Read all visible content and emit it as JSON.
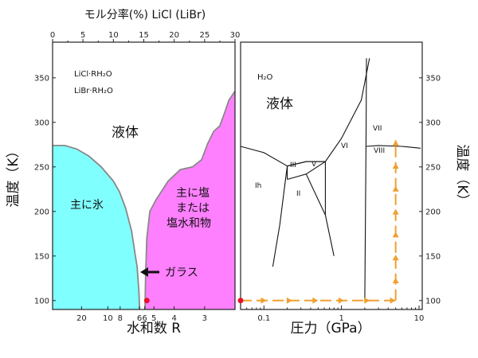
{
  "chart_data": [
    {
      "type": "area",
      "top_axis": {
        "label": "モル分率(%) LiCl (LiBr)",
        "range": [
          0,
          30
        ],
        "ticks": [
          "0",
          "5",
          "10",
          "15",
          "20",
          "25",
          "30"
        ]
      },
      "bottom_axis": {
        "label": "水和数 R",
        "ticks": [
          "20",
          "10",
          "8",
          "6",
          "6",
          "5",
          "4",
          "3"
        ]
      },
      "y_axis": {
        "label": "温度（K）",
        "range": [
          90,
          390
        ],
        "ticks": [
          "100",
          "150",
          "200",
          "250",
          "300",
          "350"
        ]
      },
      "regions": [
        {
          "name": "主に氷",
          "color": "#80ffff"
        },
        {
          "name_lines": [
            "主に塩",
            "または",
            "塩水和物"
          ],
          "color": "#ff80ff"
        },
        {
          "name": "液体"
        }
      ],
      "boundary_left": [
        [
          0,
          274
        ],
        [
          2,
          274
        ],
        [
          4,
          270
        ],
        [
          6,
          262
        ],
        [
          8,
          250
        ],
        [
          10,
          234
        ],
        [
          11,
          222
        ],
        [
          12,
          204
        ],
        [
          13,
          178
        ],
        [
          13.5,
          155
        ],
        [
          13.9,
          138
        ],
        [
          14.2,
          110
        ],
        [
          14.3,
          90
        ]
      ],
      "boundary_right": [
        [
          15.2,
          90
        ],
        [
          15.3,
          130
        ],
        [
          15.5,
          170
        ],
        [
          16,
          200
        ],
        [
          17,
          213
        ],
        [
          19,
          234
        ],
        [
          21,
          247
        ],
        [
          23,
          250
        ],
        [
          24.5,
          258
        ],
        [
          25.5,
          276
        ],
        [
          26.5,
          290
        ],
        [
          27.5,
          296
        ],
        [
          28.3,
          311
        ],
        [
          29,
          325
        ],
        [
          30,
          335
        ]
      ],
      "labels": {
        "compounds": [
          "LiCl·RH₂O",
          "LiBr·RH₂O"
        ],
        "glass": "ガラス"
      },
      "glass_point": {
        "x": 15.5,
        "y": 100
      }
    },
    {
      "type": "line",
      "x_axis": {
        "label": "圧力（GPa）",
        "scale": "log",
        "range": [
          0.05,
          11
        ],
        "ticks": [
          {
            "value": 0.1,
            "label": "0.1"
          },
          {
            "value": 1,
            "label": "1"
          },
          {
            "value": 10,
            "label": "10"
          }
        ]
      },
      "y_axis": {
        "label": "温度（K）",
        "range": [
          90,
          390
        ],
        "ticks": [
          "100",
          "150",
          "200",
          "250",
          "300",
          "350"
        ]
      },
      "title": "H₂O",
      "phases": [
        "液体",
        "Ih",
        "III",
        "V",
        "II",
        "VI",
        "VII",
        "VIII"
      ],
      "phase_boundaries": [
        [
          [
            0.05,
            273
          ],
          [
            0.1,
            266
          ],
          [
            0.2,
            251
          ]
        ],
        [
          [
            0.2,
            251
          ],
          [
            0.35,
            256
          ],
          [
            0.62,
            256
          ],
          [
            1.0,
            282
          ],
          [
            1.8,
            325
          ],
          [
            2.3,
            372
          ]
        ],
        [
          [
            0.2,
            251
          ],
          [
            0.19,
            236
          ],
          [
            0.16,
            185
          ],
          [
            0.13,
            138
          ]
        ],
        [
          [
            0.2,
            251
          ],
          [
            0.35,
            256
          ]
        ],
        [
          [
            0.35,
            256
          ],
          [
            0.62,
            256
          ]
        ],
        [
          [
            0.62,
            256
          ],
          [
            0.35,
            242
          ]
        ],
        [
          [
            0.2,
            236
          ],
          [
            0.35,
            242
          ]
        ],
        [
          [
            0.2,
            251
          ],
          [
            0.2,
            236
          ]
        ],
        [
          [
            0.35,
            242
          ],
          [
            0.62,
            196
          ]
        ],
        [
          [
            0.62,
            256
          ],
          [
            0.62,
            196
          ]
        ],
        [
          [
            0.62,
            196
          ],
          [
            0.8,
            150
          ]
        ],
        [
          [
            2.1,
            372
          ],
          [
            2.08,
            300
          ],
          [
            2.07,
            273
          ],
          [
            2.0,
            100
          ]
        ],
        [
          [
            2.07,
            273
          ],
          [
            3.0,
            274
          ],
          [
            6.0,
            273
          ],
          [
            10.5,
            271
          ]
        ]
      ],
      "path_arrows": [
        [
          [
            0.05,
            100
          ],
          [
            5.0,
            100
          ]
        ],
        [
          [
            5.0,
            100
          ],
          [
            5.0,
            280
          ]
        ]
      ],
      "start_point": {
        "x": 0.05,
        "y": 100
      }
    }
  ]
}
